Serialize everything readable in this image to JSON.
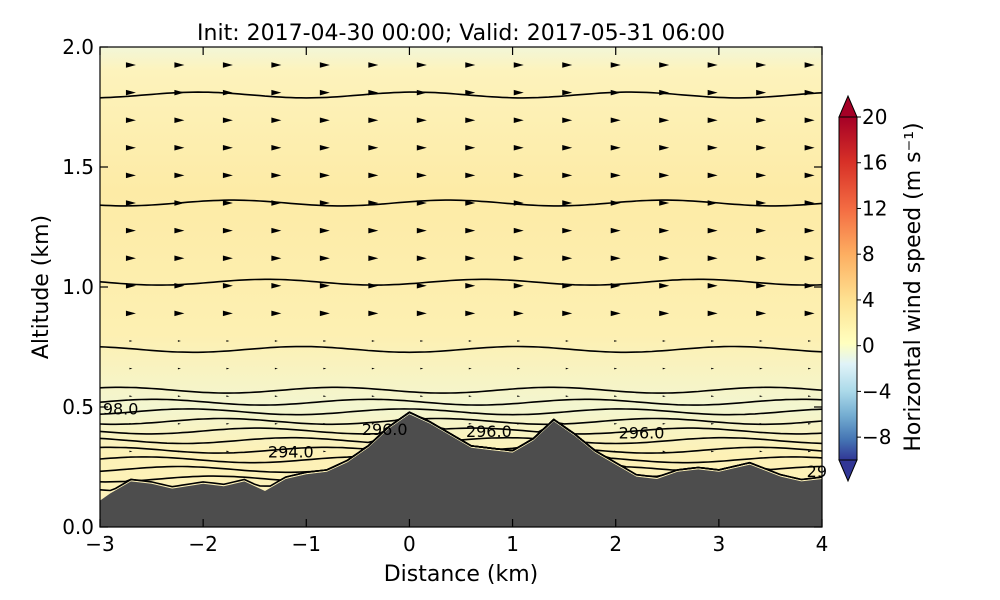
{
  "chart_data": {
    "type": "contour",
    "title": "Init: 2017-04-30 00:00; Valid: 2017-05-31 06:00",
    "xlabel": "Distance (km)",
    "ylabel": "Altitude (km)",
    "xlim": [
      -3,
      4
    ],
    "ylim": [
      0,
      2.0
    ],
    "x_ticks": [
      "−3",
      "−2",
      "−1",
      "0",
      "1",
      "2",
      "3",
      "4"
    ],
    "y_ticks": [
      "0.0",
      "0.5",
      "1.0",
      "1.5",
      "2.0"
    ],
    "colorbar": {
      "label": "Horizontal wind speed (m s⁻¹)",
      "range": [
        -10,
        20
      ],
      "ticks": [
        "20",
        "16",
        "12",
        "8",
        "4",
        "0",
        "−4",
        "−8"
      ],
      "extend": "both",
      "colormap": "RdYlBu_r"
    },
    "contour_labels": [
      "98.0",
      "296.0",
      "296.0",
      "296.0",
      "294.0",
      "29"
    ],
    "terrain_profile": {
      "x": [
        -3.0,
        -2.9,
        -2.7,
        -2.5,
        -2.3,
        -2.0,
        -1.8,
        -1.6,
        -1.4,
        -1.2,
        -1.0,
        -0.8,
        -0.6,
        -0.4,
        -0.2,
        0.0,
        0.2,
        0.4,
        0.6,
        0.8,
        1.0,
        1.2,
        1.4,
        1.6,
        1.8,
        2.0,
        2.2,
        2.4,
        2.6,
        2.8,
        3.0,
        3.3,
        3.6,
        3.8,
        4.0
      ],
      "y": [
        0.11,
        0.14,
        0.19,
        0.18,
        0.16,
        0.18,
        0.17,
        0.19,
        0.15,
        0.2,
        0.22,
        0.23,
        0.27,
        0.33,
        0.41,
        0.47,
        0.43,
        0.38,
        0.33,
        0.32,
        0.31,
        0.36,
        0.44,
        0.38,
        0.31,
        0.26,
        0.21,
        0.2,
        0.23,
        0.24,
        0.23,
        0.26,
        0.21,
        0.19,
        0.2
      ]
    },
    "colors": {
      "terrain": "#4d4d4d",
      "background_field": "#fdf0b0",
      "contour_line": "#000000"
    }
  }
}
